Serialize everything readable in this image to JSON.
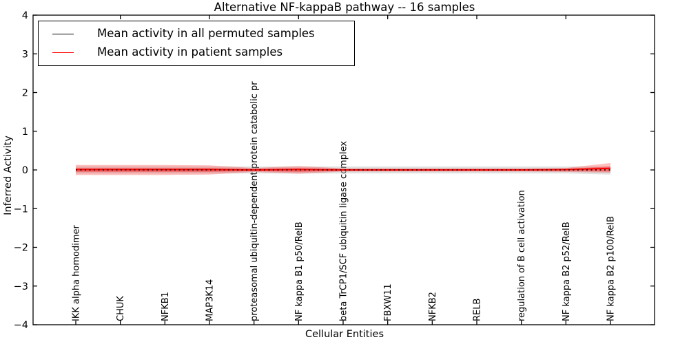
{
  "title": "Alternative NF-kappaB pathway -- 16 samples",
  "axes": {
    "xlabel": "Cellular Entities",
    "ylabel": "Inferred Activity"
  },
  "legend": {
    "items": [
      {
        "label": "Mean activity in all permuted samples",
        "color": "#000000"
      },
      {
        "label": "Mean activity in patient samples",
        "color": "#ff0000"
      }
    ]
  },
  "chart_data": {
    "type": "line",
    "title": "Alternative NF-kappaB pathway -- 16 samples",
    "xlabel": "Cellular Entities",
    "ylabel": "Inferred Activity",
    "ylim": [
      -4,
      4
    ],
    "yticks": [
      -4,
      -3,
      -2,
      -1,
      0,
      1,
      2,
      3,
      4
    ],
    "ytick_labels": [
      "−4",
      "−3",
      "−2",
      "−1",
      "0",
      "1",
      "2",
      "3",
      "4"
    ],
    "grid": false,
    "legend_position": "upper left",
    "categories": [
      "IKK alpha homodimer",
      "CHUK",
      "NFKB1",
      "MAP3K14",
      "proteasomal ubiquitin-dependent protein catabolic pr",
      "NF kappa B1 p50/RelB",
      "beta TrCP1/SCF ubiquitin ligase complex",
      "FBXW11",
      "NFKB2",
      "RELB",
      "regulation of B cell activation",
      "NF kappa B2 p52/RelB",
      "NF kappa B2 p100/RelB"
    ],
    "series": [
      {
        "name": "Mean activity in all permuted samples",
        "color": "#000000",
        "linestyle": "dotted",
        "values": [
          0,
          0,
          0,
          0,
          0,
          0,
          0,
          0,
          0,
          0,
          0,
          0,
          0
        ],
        "band": {
          "color": "#bbbbbb",
          "opacity": 0.45,
          "upper": [
            0.09,
            0.09,
            0.09,
            0.09,
            0.09,
            0.09,
            0.09,
            0.09,
            0.09,
            0.09,
            0.09,
            0.09,
            0.09
          ],
          "lower": [
            -0.09,
            -0.09,
            -0.09,
            -0.09,
            -0.09,
            -0.09,
            -0.09,
            -0.09,
            -0.09,
            -0.09,
            -0.09,
            -0.09,
            -0.12
          ]
        }
      },
      {
        "name": "Mean activity in patient samples",
        "color": "#ff0000",
        "linestyle": "solid",
        "values": [
          0.01,
          0.01,
          0.01,
          0.01,
          0.0,
          0.01,
          0.0,
          0.0,
          0.0,
          0.0,
          0.0,
          0.01,
          0.04
        ],
        "band": {
          "color": "#ff0000",
          "opacity": 0.25,
          "upper": [
            0.13,
            0.13,
            0.13,
            0.12,
            0.05,
            0.1,
            0.04,
            0.04,
            0.04,
            0.04,
            0.04,
            0.05,
            0.18
          ],
          "lower": [
            -0.13,
            -0.13,
            -0.13,
            -0.12,
            -0.05,
            -0.1,
            -0.04,
            -0.04,
            -0.04,
            -0.04,
            -0.04,
            -0.05,
            -0.07
          ]
        },
        "band_inner": {
          "color": "#ff0000",
          "opacity": 0.35,
          "upper": [
            0.05,
            0.05,
            0.05,
            0.05,
            0.03,
            0.05,
            0.025,
            0.025,
            0.025,
            0.025,
            0.025,
            0.03,
            0.09
          ],
          "lower": [
            -0.05,
            -0.05,
            -0.05,
            -0.05,
            -0.03,
            -0.05,
            -0.025,
            -0.025,
            -0.025,
            -0.025,
            -0.025,
            -0.03,
            -0.04
          ]
        }
      }
    ]
  }
}
